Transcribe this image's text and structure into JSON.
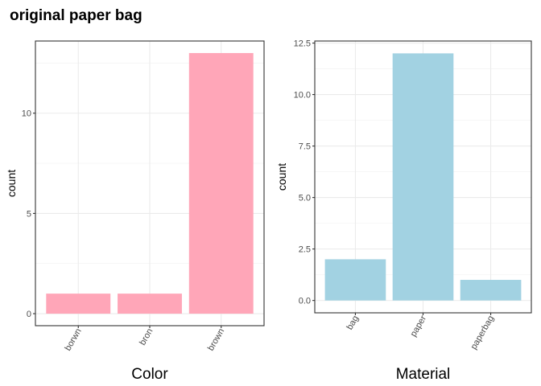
{
  "title": "original paper bag",
  "chart_data": [
    {
      "type": "bar",
      "xlabel": "Color",
      "ylabel": "count",
      "categories": [
        "borwn",
        "bron",
        "brown"
      ],
      "values": [
        1,
        1,
        13
      ],
      "ylim": [
        -0.6,
        13.6
      ],
      "yticks": [
        0,
        5,
        10
      ],
      "ytick_labels": [
        "0",
        "5",
        "10"
      ],
      "bar_color": "#FFA6B8",
      "grid": true,
      "x_tick_rotation": "60deg"
    },
    {
      "type": "bar",
      "xlabel": "Material",
      "ylabel": "count",
      "categories": [
        "bag",
        "paper",
        "paperbag"
      ],
      "values": [
        2,
        12,
        1
      ],
      "ylim": [
        -0.6,
        12.6
      ],
      "yticks": [
        0,
        2.5,
        5,
        7.5,
        10,
        12.5
      ],
      "ytick_labels": [
        "0.0",
        "2.5",
        "5.0",
        "7.5",
        "10.0",
        "12.5"
      ],
      "bar_color": "#A2D2E2",
      "grid": true,
      "x_tick_rotation": "60deg"
    }
  ]
}
